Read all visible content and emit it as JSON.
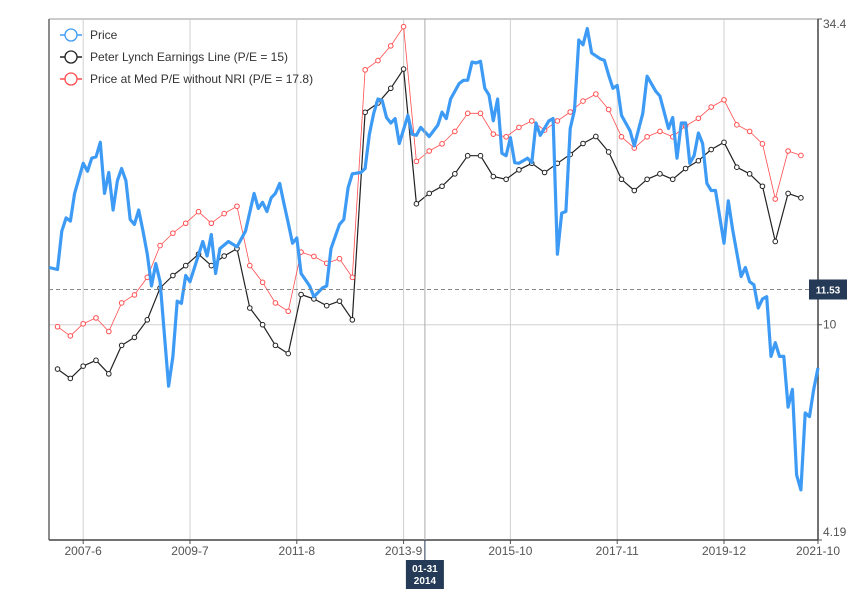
{
  "chart_data": {
    "type": "line",
    "y_scale": "log",
    "ylim": [
      4.19,
      34.4
    ],
    "xlim": [
      "2006-10",
      "2021-10"
    ],
    "grid": true,
    "legend_position": "top-left",
    "x_ticks": [
      {
        "date": "2007-06",
        "label": "2007-6"
      },
      {
        "date": "2009-07",
        "label": "2009-7"
      },
      {
        "date": "2011-08",
        "label": "2011-8"
      },
      {
        "date": "2013-09",
        "label": "2013-9"
      },
      {
        "date": "2015-10",
        "label": "2015-10"
      },
      {
        "date": "2017-11",
        "label": "2017-11"
      },
      {
        "date": "2019-12",
        "label": "2019-12"
      },
      {
        "date": "2021-10",
        "label": "2021-10"
      }
    ],
    "y_ticks": [
      {
        "value": 34.4,
        "label": "34.4"
      },
      {
        "value": 10,
        "label": "10"
      },
      {
        "value": 4.19,
        "label": "4.19"
      }
    ],
    "crosshair": {
      "date": "2014-01-31",
      "date_label_top": "01-31",
      "date_label_bottom": "2014",
      "value": 11.53,
      "value_label": "11.53"
    },
    "series": [
      {
        "name": "Price",
        "color": "#3d9bf5",
        "markers": false,
        "points": [
          [
            "2006-10",
            12.6
          ],
          [
            "2006-12",
            12.5
          ],
          [
            "2007-01",
            14.6
          ],
          [
            "2007-02",
            15.4
          ],
          [
            "2007-03",
            15.2
          ],
          [
            "2007-04",
            17.0
          ],
          [
            "2007-06",
            19.2
          ],
          [
            "2007-07",
            18.6
          ],
          [
            "2007-08",
            19.6
          ],
          [
            "2007-09",
            19.7
          ],
          [
            "2007-10",
            20.9
          ],
          [
            "2007-11",
            17.0
          ],
          [
            "2007-12",
            18.5
          ],
          [
            "2008-01",
            15.9
          ],
          [
            "2008-02",
            17.9
          ],
          [
            "2008-03",
            18.8
          ],
          [
            "2008-04",
            17.9
          ],
          [
            "2008-05",
            15.3
          ],
          [
            "2008-06",
            15.0
          ],
          [
            "2008-07",
            15.9
          ],
          [
            "2008-08",
            14.6
          ],
          [
            "2008-09",
            13.3
          ],
          [
            "2008-10",
            11.7
          ],
          [
            "2008-11",
            12.8
          ],
          [
            "2008-12",
            11.9
          ],
          [
            "2009-02",
            7.8
          ],
          [
            "2009-03",
            8.8
          ],
          [
            "2009-04",
            11.0
          ],
          [
            "2009-05",
            10.9
          ],
          [
            "2009-06",
            12.2
          ],
          [
            "2009-07",
            11.9
          ],
          [
            "2009-10",
            14.0
          ],
          [
            "2009-11",
            13.2
          ],
          [
            "2009-12",
            14.4
          ],
          [
            "2010-01",
            12.3
          ],
          [
            "2010-02",
            13.6
          ],
          [
            "2010-04",
            14.0
          ],
          [
            "2010-06",
            13.7
          ],
          [
            "2010-08",
            14.6
          ],
          [
            "2010-10",
            17.0
          ],
          [
            "2010-11",
            16.0
          ],
          [
            "2010-12",
            16.4
          ],
          [
            "2011-01",
            15.8
          ],
          [
            "2011-02",
            16.7
          ],
          [
            "2011-03",
            17.0
          ],
          [
            "2011-04",
            17.7
          ],
          [
            "2011-05",
            16.3
          ],
          [
            "2011-06",
            15.1
          ],
          [
            "2011-07",
            13.9
          ],
          [
            "2011-08",
            14.2
          ],
          [
            "2011-09",
            12.3
          ],
          [
            "2011-11",
            11.7
          ],
          [
            "2011-12",
            11.2
          ],
          [
            "2012-02",
            11.6
          ],
          [
            "2012-03",
            11.7
          ],
          [
            "2012-04",
            13.6
          ],
          [
            "2012-06",
            15.0
          ],
          [
            "2012-07",
            15.3
          ],
          [
            "2012-08",
            17.4
          ],
          [
            "2012-09",
            18.4
          ],
          [
            "2012-11",
            18.5
          ],
          [
            "2012-12",
            18.8
          ],
          [
            "2013-01",
            21.6
          ],
          [
            "2013-02",
            23.5
          ],
          [
            "2013-03",
            24.9
          ],
          [
            "2013-04",
            24.75
          ],
          [
            "2013-05",
            23.1
          ],
          [
            "2013-06",
            22.6
          ],
          [
            "2013-07",
            23.0
          ],
          [
            "2013-08",
            20.8
          ],
          [
            "2013-10",
            23.3
          ],
          [
            "2013-11",
            21.6
          ],
          [
            "2013-12",
            21.5
          ],
          [
            "2014-01",
            22.2
          ],
          [
            "2014-03",
            21.4
          ],
          [
            "2014-05",
            22.4
          ],
          [
            "2014-06",
            23.6
          ],
          [
            "2014-07",
            23.0
          ],
          [
            "2014-08",
            24.9
          ],
          [
            "2014-10",
            26.5
          ],
          [
            "2014-11",
            26.85
          ],
          [
            "2014-12",
            26.85
          ],
          [
            "2015-01",
            28.9
          ],
          [
            "2015-02",
            28.8
          ],
          [
            "2015-03",
            29.0
          ],
          [
            "2015-04",
            26.0
          ],
          [
            "2015-05",
            25.3
          ],
          [
            "2015-06",
            22.8
          ],
          [
            "2015-07",
            24.9
          ],
          [
            "2015-08",
            20.0
          ],
          [
            "2015-09",
            19.8
          ],
          [
            "2015-10",
            21.3
          ],
          [
            "2015-11",
            19.25
          ],
          [
            "2015-12",
            19.2
          ],
          [
            "2016-02",
            19.6
          ],
          [
            "2016-03",
            19.25
          ],
          [
            "2016-04",
            22.6
          ],
          [
            "2016-05",
            21.5
          ],
          [
            "2016-07",
            22.8
          ],
          [
            "2016-08",
            23.0
          ],
          [
            "2016-09",
            13.3
          ],
          [
            "2016-10",
            15.7
          ],
          [
            "2016-11",
            15.8
          ],
          [
            "2016-12",
            22.1
          ],
          [
            "2017-01",
            23.8
          ],
          [
            "2017-02",
            31.6
          ],
          [
            "2017-03",
            31.0
          ],
          [
            "2017-04",
            33.1
          ],
          [
            "2017-05",
            30.0
          ],
          [
            "2017-07",
            29.3
          ],
          [
            "2017-08",
            29.1
          ],
          [
            "2017-09",
            27.4
          ],
          [
            "2017-10",
            26.0
          ],
          [
            "2017-11",
            26.3
          ],
          [
            "2017-12",
            23.3
          ],
          [
            "2018-02",
            21.9
          ],
          [
            "2018-03",
            20.6
          ],
          [
            "2018-05",
            23.5
          ],
          [
            "2018-06",
            27.3
          ],
          [
            "2018-08",
            25.7
          ],
          [
            "2018-09",
            25.2
          ],
          [
            "2018-11",
            22.1
          ],
          [
            "2018-12",
            23.1
          ],
          [
            "2019-01",
            19.6
          ],
          [
            "2019-02",
            22.6
          ],
          [
            "2019-03",
            22.6
          ],
          [
            "2019-04",
            19.2
          ],
          [
            "2019-05",
            19.8
          ],
          [
            "2019-06",
            21.7
          ],
          [
            "2019-07",
            20.8
          ],
          [
            "2019-08",
            17.7
          ],
          [
            "2019-09",
            17.2
          ],
          [
            "2019-10",
            17.2
          ],
          [
            "2019-12",
            13.9
          ],
          [
            "2020-01",
            16.5
          ],
          [
            "2020-02",
            14.7
          ],
          [
            "2020-04",
            12.15
          ],
          [
            "2020-05",
            12.6
          ],
          [
            "2020-06",
            11.9
          ],
          [
            "2020-07",
            11.75
          ],
          [
            "2020-08",
            10.7
          ],
          [
            "2020-09",
            11.1
          ],
          [
            "2020-10",
            11.2
          ],
          [
            "2020-11",
            8.8
          ],
          [
            "2020-12",
            9.3
          ],
          [
            "2021-01",
            8.8
          ],
          [
            "2021-02",
            8.8
          ],
          [
            "2021-03",
            7.17
          ],
          [
            "2021-04",
            7.7
          ],
          [
            "2021-05",
            5.45
          ],
          [
            "2021-06",
            5.13
          ],
          [
            "2021-07",
            7.0
          ],
          [
            "2021-08",
            6.9
          ],
          [
            "2021-09",
            7.7
          ],
          [
            "2021-10",
            8.4
          ]
        ]
      },
      {
        "name": "Peter Lynch Earnings Line (P/E = 15)",
        "color": "#222222",
        "markers": true,
        "points": [
          [
            "2006-12",
            8.36
          ],
          [
            "2007-03",
            8.05
          ],
          [
            "2007-06",
            8.46
          ],
          [
            "2007-09",
            8.66
          ],
          [
            "2007-12",
            8.2
          ],
          [
            "2008-03",
            9.2
          ],
          [
            "2008-06",
            9.5
          ],
          [
            "2008-09",
            10.2
          ],
          [
            "2008-12",
            11.6
          ],
          [
            "2009-03",
            12.2
          ],
          [
            "2009-06",
            12.7
          ],
          [
            "2009-09",
            13.3
          ],
          [
            "2009-12",
            12.7
          ],
          [
            "2010-03",
            13.2
          ],
          [
            "2010-06",
            13.6
          ],
          [
            "2010-09",
            10.7
          ],
          [
            "2010-12",
            10.0
          ],
          [
            "2011-03",
            9.2
          ],
          [
            "2011-06",
            8.9
          ],
          [
            "2011-09",
            11.3
          ],
          [
            "2011-12",
            11.1
          ],
          [
            "2012-03",
            10.8
          ],
          [
            "2012-06",
            11.0
          ],
          [
            "2012-09",
            10.2
          ],
          [
            "2012-12",
            23.6
          ],
          [
            "2013-03",
            24.5
          ],
          [
            "2013-06",
            26.0
          ],
          [
            "2013-09",
            28.1
          ],
          [
            "2013-12",
            16.3
          ],
          [
            "2014-03",
            17.0
          ],
          [
            "2014-06",
            17.5
          ],
          [
            "2014-09",
            18.4
          ],
          [
            "2014-12",
            19.8
          ],
          [
            "2015-03",
            19.8
          ],
          [
            "2015-06",
            18.2
          ],
          [
            "2015-09",
            18.0
          ],
          [
            "2015-12",
            18.7
          ],
          [
            "2016-03",
            19.2
          ],
          [
            "2016-06",
            18.5
          ],
          [
            "2016-09",
            19.2
          ],
          [
            "2016-12",
            19.9
          ],
          [
            "2017-03",
            20.8
          ],
          [
            "2017-06",
            21.4
          ],
          [
            "2017-09",
            20.1
          ],
          [
            "2017-12",
            18.0
          ],
          [
            "2018-03",
            17.2
          ],
          [
            "2018-06",
            18.0
          ],
          [
            "2018-09",
            18.4
          ],
          [
            "2018-12",
            18.0
          ],
          [
            "2019-03",
            18.8
          ],
          [
            "2019-06",
            19.4
          ],
          [
            "2019-09",
            20.3
          ],
          [
            "2019-12",
            20.9
          ],
          [
            "2020-03",
            18.9
          ],
          [
            "2020-06",
            18.4
          ],
          [
            "2020-09",
            17.5
          ],
          [
            "2020-12",
            14.0
          ],
          [
            "2021-03",
            17.0
          ],
          [
            "2021-06",
            16.7
          ]
        ]
      },
      {
        "name": "Price at Med P/E without NRI (P/E = 17.8)",
        "color": "#ff4d4f",
        "markers": true,
        "points": [
          [
            "2006-12",
            9.92
          ],
          [
            "2007-03",
            9.56
          ],
          [
            "2007-06",
            10.04
          ],
          [
            "2007-09",
            10.28
          ],
          [
            "2007-12",
            9.73
          ],
          [
            "2008-03",
            10.92
          ],
          [
            "2008-06",
            11.28
          ],
          [
            "2008-09",
            12.11
          ],
          [
            "2008-12",
            13.77
          ],
          [
            "2009-03",
            14.48
          ],
          [
            "2009-06",
            15.07
          ],
          [
            "2009-09",
            15.79
          ],
          [
            "2009-12",
            15.07
          ],
          [
            "2010-03",
            15.67
          ],
          [
            "2010-06",
            16.14
          ],
          [
            "2010-09",
            12.7
          ],
          [
            "2010-12",
            11.87
          ],
          [
            "2011-03",
            10.92
          ],
          [
            "2011-06",
            10.56
          ],
          [
            "2011-09",
            13.41
          ],
          [
            "2011-12",
            13.18
          ],
          [
            "2012-03",
            12.82
          ],
          [
            "2012-06",
            13.06
          ],
          [
            "2012-09",
            12.11
          ],
          [
            "2012-12",
            28.01
          ],
          [
            "2013-03",
            29.08
          ],
          [
            "2013-06",
            30.86
          ],
          [
            "2013-09",
            33.35
          ],
          [
            "2013-12",
            19.35
          ],
          [
            "2014-03",
            20.18
          ],
          [
            "2014-06",
            20.77
          ],
          [
            "2014-09",
            21.84
          ],
          [
            "2014-12",
            23.5
          ],
          [
            "2015-03",
            23.5
          ],
          [
            "2015-06",
            21.6
          ],
          [
            "2015-09",
            21.37
          ],
          [
            "2015-12",
            22.2
          ],
          [
            "2016-03",
            22.79
          ],
          [
            "2016-06",
            21.96
          ],
          [
            "2016-09",
            22.79
          ],
          [
            "2016-12",
            23.62
          ],
          [
            "2017-03",
            24.69
          ],
          [
            "2017-06",
            25.4
          ],
          [
            "2017-09",
            23.86
          ],
          [
            "2017-12",
            21.37
          ],
          [
            "2018-03",
            20.42
          ],
          [
            "2018-06",
            21.37
          ],
          [
            "2018-09",
            21.84
          ],
          [
            "2018-12",
            21.37
          ],
          [
            "2019-03",
            22.32
          ],
          [
            "2019-06",
            23.03
          ],
          [
            "2019-09",
            24.1
          ],
          [
            "2019-12",
            24.81
          ],
          [
            "2020-03",
            22.43
          ],
          [
            "2020-06",
            21.84
          ],
          [
            "2020-09",
            20.77
          ],
          [
            "2020-12",
            16.62
          ],
          [
            "2021-03",
            20.18
          ],
          [
            "2021-06",
            19.82
          ]
        ]
      }
    ]
  }
}
